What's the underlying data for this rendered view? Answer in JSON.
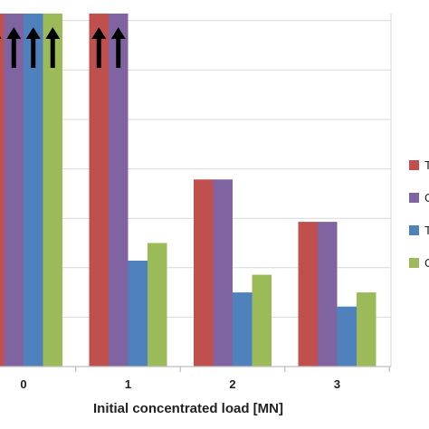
{
  "chart_data": {
    "type": "bar",
    "xlabel": "Initial concentrated load [MN]",
    "categories": [
      "0",
      "1",
      "2",
      "3"
    ],
    "ylim": [
      0,
      100
    ],
    "grid": true,
    "legend_position": "right",
    "overflow_marker": "arrow-up",
    "series": [
      {
        "color": "#c0504d",
        "values": [
          null,
          null,
          53,
          41
        ]
      },
      {
        "color": "#8064a2",
        "values": [
          null,
          null,
          53,
          41
        ]
      },
      {
        "color": "#4f81bd",
        "values": [
          null,
          30,
          21,
          17
        ]
      },
      {
        "color": "#9bbb59",
        "values": [
          null,
          35,
          26,
          21
        ]
      }
    ],
    "legend": [
      {
        "label": "T",
        "color": "#c0504d"
      },
      {
        "label": "C",
        "color": "#8064a2"
      },
      {
        "label": "T",
        "color": "#4f81bd"
      },
      {
        "label": "C",
        "color": "#9bbb59"
      }
    ],
    "axis_color": "#bfbfbf",
    "grid_color": "#d9d9d9"
  }
}
